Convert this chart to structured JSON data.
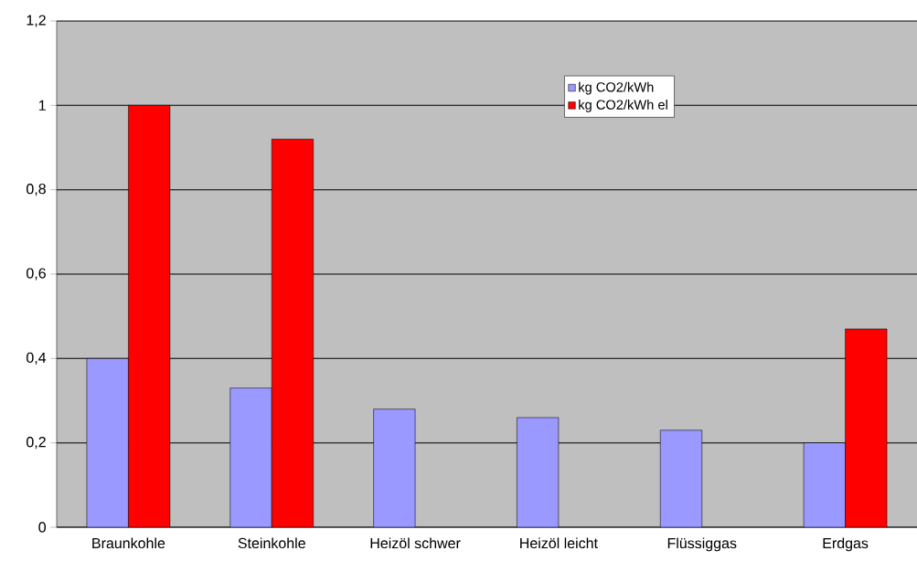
{
  "chart_data": {
    "type": "bar",
    "categories": [
      "Braunkohle",
      "Steinkohle",
      "Heizöl schwer",
      "Heizöl leicht",
      "Flüssiggas",
      "Erdgas"
    ],
    "series": [
      {
        "name": "kg CO2/kWh",
        "color": "#9999ff",
        "values": [
          0.4,
          0.33,
          0.28,
          0.26,
          0.23,
          0.2
        ]
      },
      {
        "name": "kg CO2/kWh el",
        "color": "#ff0000",
        "values": [
          1.0,
          0.92,
          null,
          null,
          null,
          0.47
        ]
      }
    ],
    "ylim": [
      0,
      1.2
    ],
    "yticks": [
      0,
      {
        "value": 0.2,
        "label": "0,2"
      },
      {
        "value": 0.4,
        "label": "0,4"
      },
      {
        "value": 0.6,
        "label": "0,6"
      },
      {
        "value": 0.8,
        "label": "0,8"
      },
      1,
      {
        "value": 1.2,
        "label": "1,2"
      }
    ],
    "grid": "y",
    "legend": "top right"
  }
}
